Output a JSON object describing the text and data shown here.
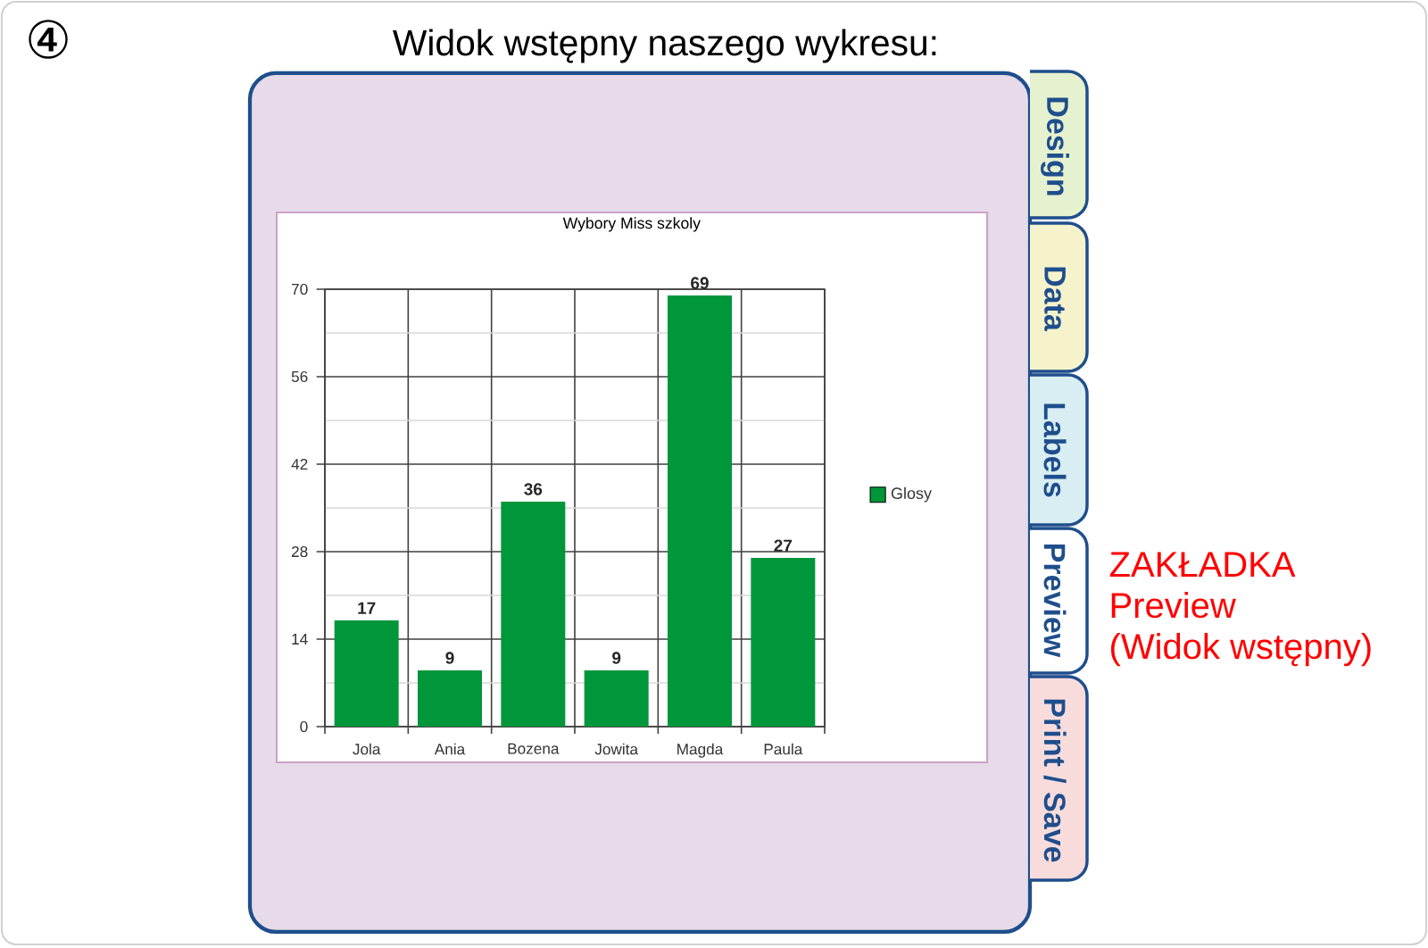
{
  "chart_data": {
    "type": "bar",
    "title": "Wybory Miss szkoly",
    "categories": [
      "Jola",
      "Ania",
      "Bozena",
      "Jowita",
      "Magda",
      "Paula"
    ],
    "series": [
      {
        "name": "Glosy",
        "color": "#00963a",
        "values": [
          17,
          9,
          36,
          9,
          69,
          27
        ]
      }
    ],
    "ylim": [
      0,
      70
    ],
    "yticks": [
      0,
      14,
      28,
      42,
      56,
      70
    ],
    "grid": true,
    "legend": "right",
    "data_labels": true,
    "annotations": [
      "④",
      "Widok wstępny naszego wykresu:",
      "Design",
      "Data",
      "Labels",
      "Preview",
      "Print / Save",
      "ZAKŁADKA",
      "Preview",
      "(Widok wstępny)"
    ]
  }
}
